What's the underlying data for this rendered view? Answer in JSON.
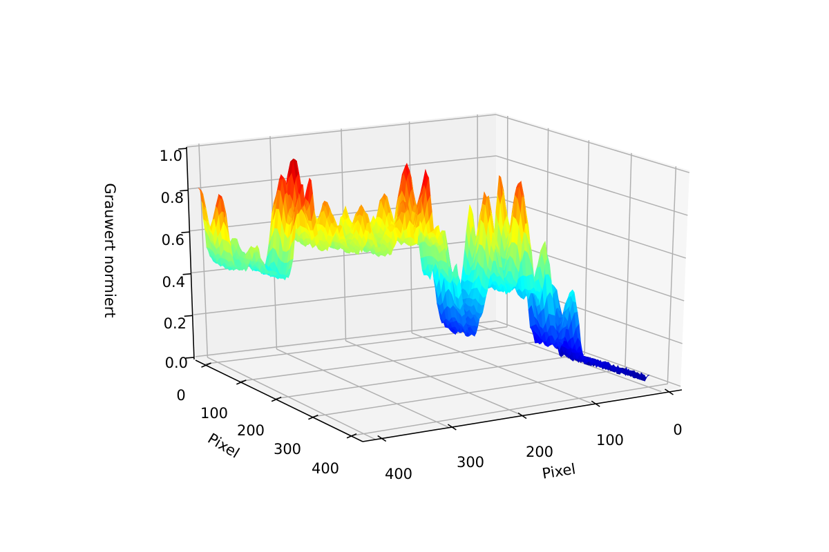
{
  "chart_data": {
    "type": "surface",
    "title": "",
    "colormap": "jet",
    "x_axis": {
      "label": "Pixel",
      "ticks": [
        "0",
        "100",
        "200",
        "300",
        "400"
      ]
    },
    "y_axis": {
      "label": "Pixel",
      "ticks": [
        "400",
        "300",
        "200",
        "100",
        "0"
      ]
    },
    "z_axis": {
      "label": "Grauwert normiert",
      "ticks": [
        "0.0",
        "0.2",
        "0.4",
        "0.6",
        "0.8",
        "1.0"
      ],
      "zlim": [
        0,
        1
      ]
    },
    "grid": true,
    "profile_base": [
      [
        430,
        0.42
      ],
      [
        380,
        0.4
      ],
      [
        366,
        0.36
      ],
      [
        356,
        0.52
      ],
      [
        300,
        0.5
      ],
      [
        270,
        0.48
      ],
      [
        240,
        0.5
      ],
      [
        222,
        0.48
      ],
      [
        215,
        0.22
      ],
      [
        195,
        0.16
      ],
      [
        182,
        0.32
      ],
      [
        140,
        0.36
      ],
      [
        122,
        0.14
      ],
      [
        100,
        0.1
      ],
      [
        60,
        0.07
      ],
      [
        30,
        0.04
      ]
    ],
    "profile_peaks": [
      {
        "y": 430,
        "z": 0.78
      },
      {
        "y": 400,
        "z": 0.53
      },
      {
        "y": 358,
        "z": 0.83
      },
      {
        "y": 350,
        "z": 0.92
      },
      {
        "y": 322,
        "z": 0.71
      },
      {
        "y": 292,
        "z": 0.69
      },
      {
        "y": 266,
        "z": 0.61
      },
      {
        "y": 258,
        "z": 0.72
      },
      {
        "y": 240,
        "z": 0.84
      },
      {
        "y": 230,
        "z": 0.64
      },
      {
        "y": 212,
        "z": 0.59
      },
      {
        "y": 174,
        "z": 0.73
      },
      {
        "y": 146,
        "z": 0.78
      },
      {
        "y": 126,
        "z": 0.53
      },
      {
        "y": 102,
        "z": 0.37
      }
    ]
  }
}
